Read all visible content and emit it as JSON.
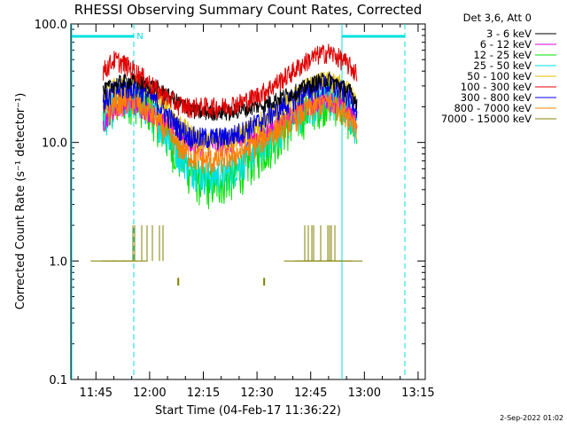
{
  "chart_data": {
    "type": "line",
    "title": "RHESSI Observing Summary Count Rates, Corrected",
    "xlabel": "Start Time (04-Feb-17 11:36:22)",
    "ylabel": "Corrected Count Rate (s⁻¹ detector⁻¹)",
    "y_scale": "log",
    "ylim": [
      0.1,
      100.0
    ],
    "xlim": [
      "11:38",
      "13:17"
    ],
    "x_ticks": [
      "11:45",
      "12:00",
      "12:15",
      "12:30",
      "12:45",
      "13:00",
      "13:15"
    ],
    "y_ticks": [
      "0.1",
      "1.0",
      "10.0",
      "100.0"
    ],
    "legend_title": "Det 3,6, Att 0",
    "legend_position": "right",
    "footer": "2-Sep-2022 01:02",
    "night_marker": "N",
    "x": [
      "11:47",
      "11:50",
      "11:53",
      "11:56",
      "11:59",
      "12:02",
      "12:05",
      "12:08",
      "12:11",
      "12:14",
      "12:17",
      "12:20",
      "12:23",
      "12:26",
      "12:29",
      "12:32",
      "12:35",
      "12:38",
      "12:41",
      "12:44",
      "12:47",
      "12:50",
      "12:53",
      "12:56",
      "12:58"
    ],
    "series": [
      {
        "name": "3 - 6 keV",
        "color": "#000000",
        "values": [
          27,
          31,
          33,
          33,
          31,
          29,
          25,
          22,
          19,
          18,
          18,
          18,
          18,
          19,
          20,
          21,
          23,
          25,
          27,
          30,
          33,
          34,
          31,
          27,
          22
        ]
      },
      {
        "name": "6 - 12 keV",
        "color": "#e000e0",
        "values": [
          15,
          19,
          21,
          21,
          19,
          17,
          14,
          12,
          10,
          9.5,
          9.5,
          9.5,
          9.8,
          10.3,
          11,
          12,
          14,
          16,
          18,
          20,
          22,
          23,
          21,
          18,
          15
        ]
      },
      {
        "name": "12 - 25 keV",
        "color": "#00e000",
        "values": [
          16,
          21,
          24,
          24,
          21,
          16,
          11,
          8,
          6,
          4.8,
          4.5,
          4.8,
          5.3,
          6.2,
          7.5,
          9,
          11,
          13.5,
          16,
          19,
          22,
          24,
          22,
          17,
          12
        ]
      },
      {
        "name": "25 - 50 keV",
        "color": "#00e0e0",
        "values": [
          16,
          20,
          23,
          23,
          20,
          16,
          11.5,
          8.5,
          6.5,
          5.5,
          5.2,
          5.5,
          6,
          7,
          8.5,
          10,
          12,
          14.5,
          17,
          19.5,
          22,
          23,
          21,
          17,
          13
        ]
      },
      {
        "name": "50 - 100 keV",
        "color": "#e0c000",
        "values": [
          23,
          29,
          31,
          31,
          28,
          24,
          19,
          15,
          12,
          10.5,
          10,
          10.5,
          11,
          12,
          13.5,
          15.5,
          18,
          21,
          25,
          29,
          32,
          34,
          31,
          26,
          21
        ]
      },
      {
        "name": "100 - 300 keV",
        "color": "#e00000",
        "values": [
          40,
          50,
          46,
          40,
          34,
          28,
          24,
          21,
          20,
          20,
          20,
          20,
          21,
          22,
          24,
          27,
          31,
          36,
          42,
          49,
          55,
          58,
          52,
          44,
          38
        ]
      },
      {
        "name": "300 - 800 keV",
        "color": "#0000e0",
        "values": [
          22,
          27,
          29,
          29,
          26,
          22,
          17,
          13.5,
          11.5,
          11,
          11,
          11,
          11.5,
          12.5,
          14,
          16,
          18.5,
          21,
          24,
          27,
          30,
          31,
          28,
          24,
          20
        ]
      },
      {
        "name": "800 - 7000 keV",
        "color": "#ff8000",
        "values": [
          17,
          21,
          23,
          22,
          19,
          15.5,
          12,
          9.5,
          8,
          7.3,
          7,
          7.3,
          7.8,
          8.5,
          9.5,
          11,
          12.5,
          14.5,
          16.5,
          19,
          21,
          22,
          20,
          17,
          14
        ]
      },
      {
        "name": "7000 - 15000 keV",
        "color": "#808000",
        "values": [
          1,
          1,
          1,
          1,
          null,
          null,
          null,
          0.7,
          null,
          null,
          null,
          null,
          null,
          null,
          null,
          0.7,
          null,
          null,
          1,
          1,
          1,
          1,
          1,
          1,
          null
        ]
      }
    ]
  }
}
